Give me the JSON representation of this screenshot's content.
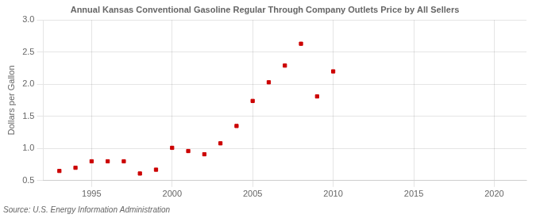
{
  "chart_data": {
    "type": "scatter",
    "title": "Annual Kansas Conventional Gasoline Regular Through Company Outlets Price by All Sellers",
    "ylabel": "Dollars per Gallon",
    "annotations": [
      "Source: U.S. Energy Information Administration"
    ],
    "x": [
      1993,
      1994,
      1995,
      1996,
      1997,
      1998,
      1999,
      2000,
      2001,
      2002,
      2003,
      2004,
      2005,
      2006,
      2007,
      2008,
      2009,
      2010
    ],
    "values": [
      0.65,
      0.7,
      0.8,
      0.8,
      0.8,
      0.61,
      0.67,
      1.01,
      0.96,
      0.91,
      1.08,
      1.35,
      1.74,
      2.03,
      2.29,
      2.63,
      1.81,
      2.2
    ],
    "color": "#cc0000",
    "marker": "square",
    "xlim": [
      1992,
      2022
    ],
    "xticks": [
      1995,
      2000,
      2005,
      2010,
      2015,
      2020
    ],
    "ylim": [
      0.5,
      3.0
    ],
    "yticks": [
      0.5,
      {
        "value": 1.0,
        "label": "1.0"
      },
      1.5,
      {
        "value": 2.0,
        "label": "2.0"
      },
      2.5,
      {
        "value": 3.0,
        "label": "3.0"
      }
    ],
    "grid": true
  }
}
